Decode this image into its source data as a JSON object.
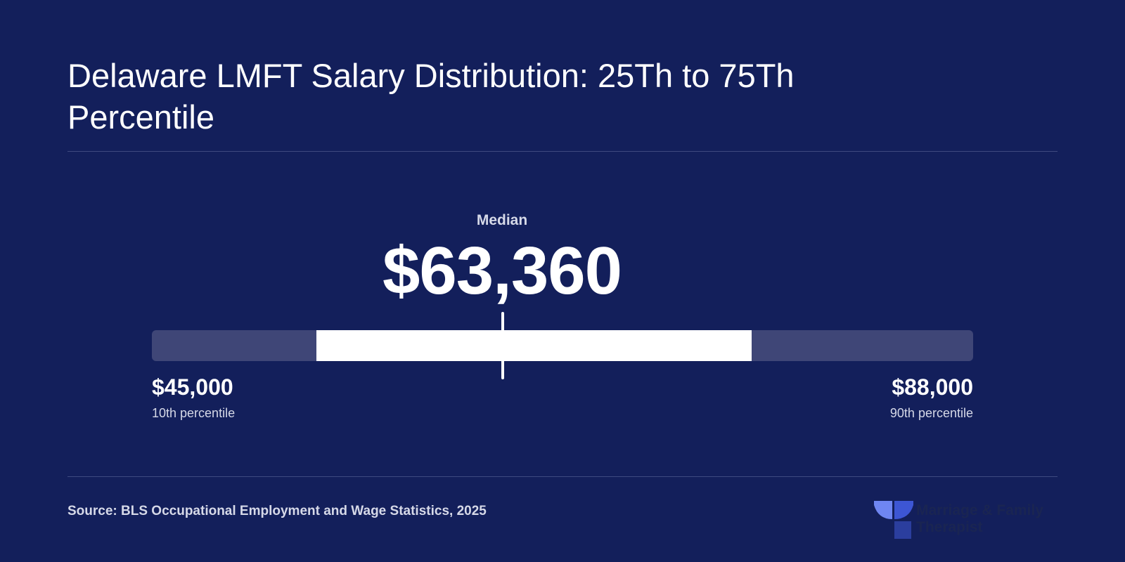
{
  "chart_data": {
    "type": "range",
    "title": "Delaware LMFT Salary Distribution: 25Th to 75Th Percentile",
    "median": {
      "label": "Median",
      "value": 63360,
      "display": "$63,360"
    },
    "low": {
      "value": 45000,
      "display": "$45,000",
      "label": "10th percentile"
    },
    "high": {
      "value": 88000,
      "display": "$88,000",
      "label": "90th percentile"
    },
    "interquartile_range_fraction": [
      0.2,
      0.73
    ],
    "colors": {
      "background": "#131f5b",
      "track": "#3f4677",
      "highlight": "#ffffff"
    }
  },
  "footer": {
    "source": "Source: BLS Occupational Employment and Wage Statistics, 2025",
    "logo": {
      "text": "Marriage & Family Therapist",
      "icon": "brand-logo-icon"
    }
  }
}
